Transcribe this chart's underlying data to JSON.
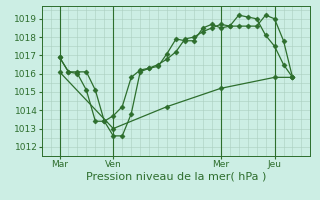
{
  "bg_color": "#cceee4",
  "grid_color": "#aacfbf",
  "line_color": "#2d6e2d",
  "marker_color": "#2d6e2d",
  "xlabel": "Pression niveau de la mer( hPa )",
  "xlabel_fontsize": 8,
  "tick_color": "#2d6e2d",
  "ylim": [
    1011.5,
    1019.7
  ],
  "yticks": [
    1012,
    1013,
    1014,
    1015,
    1016,
    1017,
    1018,
    1019
  ],
  "xtick_labels": [
    "Mar",
    "Ven",
    "Mer",
    "Jeu"
  ],
  "xtick_positions": [
    8,
    32,
    80,
    104
  ],
  "vline_positions": [
    8,
    32,
    80,
    104
  ],
  "xlim": [
    0,
    120
  ],
  "series1_x": [
    8,
    12,
    16,
    20,
    24,
    28,
    32,
    36,
    40,
    44,
    48,
    52,
    56,
    60,
    64,
    68,
    72,
    76,
    80,
    84,
    88,
    92,
    96,
    100,
    104,
    108,
    112
  ],
  "series1_y": [
    1016.9,
    1016.1,
    1016.1,
    1016.1,
    1015.1,
    1013.4,
    1012.6,
    1012.6,
    1013.8,
    1016.1,
    1016.3,
    1016.4,
    1017.1,
    1017.9,
    1017.8,
    1017.8,
    1018.5,
    1018.7,
    1018.5,
    1018.6,
    1019.2,
    1019.1,
    1019.0,
    1018.1,
    1017.5,
    1016.5,
    1015.8
  ],
  "series2_x": [
    8,
    12,
    16,
    20,
    24,
    28,
    32,
    36,
    40,
    44,
    48,
    52,
    56,
    60,
    64,
    68,
    72,
    76,
    80,
    84,
    88,
    92,
    96,
    100,
    104,
    108,
    112
  ],
  "series2_y": [
    1016.9,
    1016.1,
    1016.0,
    1015.1,
    1013.4,
    1013.4,
    1013.7,
    1014.2,
    1015.8,
    1016.2,
    1016.3,
    1016.5,
    1016.8,
    1017.2,
    1017.9,
    1018.0,
    1018.3,
    1018.5,
    1018.7,
    1018.6,
    1018.6,
    1018.6,
    1018.6,
    1019.2,
    1019.0,
    1017.8,
    1015.8
  ],
  "series3_x": [
    8,
    32,
    56,
    80,
    104,
    112
  ],
  "series3_y": [
    1016.1,
    1013.0,
    1014.2,
    1015.2,
    1015.8,
    1015.8
  ]
}
